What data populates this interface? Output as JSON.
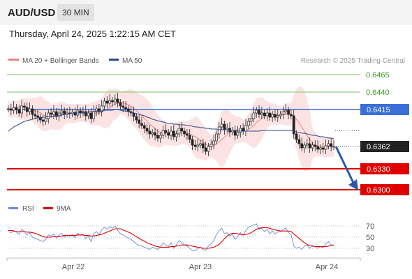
{
  "header": {
    "symbol": "AUD/USD",
    "timeframe": "30 MIN",
    "datetime": "Thursday, April 24, 2025 1:22:15 AM CET"
  },
  "legend": {
    "bb_label": "MA 20 + Bollinger Bands",
    "ma50_label": "MA 50",
    "credit": "Research © 2025 Trading Central",
    "rsi_label": "RSI",
    "rsi_ma_label": "9MA"
  },
  "colors": {
    "bollinger": "#f08080",
    "ma50": "#2a4a8a",
    "support": "#e00000",
    "pivot": "#3a6fd8",
    "resistance": "#7bc26a",
    "current": "#222222",
    "rsi": "#6a8ad8",
    "rsi_ma": "#e00000",
    "arrow": "#2a5aa8"
  },
  "chart_data": [
    {
      "type": "candlestick",
      "title": "AUD/USD 30 MIN",
      "x_labels": [
        "Apr 22",
        "Apr 23",
        "Apr 24"
      ],
      "ylim": [
        0.6292,
        0.6472
      ],
      "levels": [
        {
          "value": 0.6465,
          "label": "0.6465",
          "kind": "resistance"
        },
        {
          "value": 0.644,
          "label": "0.6440",
          "kind": "resistance"
        },
        {
          "value": 0.6415,
          "label": "0.6415",
          "kind": "pivot"
        },
        {
          "value": 0.6362,
          "label": "0.6362",
          "kind": "current"
        },
        {
          "value": 0.633,
          "label": "0.6330",
          "kind": "support"
        },
        {
          "value": 0.63,
          "label": "0.6300",
          "kind": "support"
        }
      ],
      "close": [
        0.6416,
        0.6414,
        0.6418,
        0.6415,
        0.641,
        0.642,
        0.6418,
        0.6412,
        0.6416,
        0.6408,
        0.6406,
        0.6404,
        0.64,
        0.6398,
        0.6402,
        0.641,
        0.6408,
        0.6412,
        0.6405,
        0.641,
        0.6413,
        0.6408,
        0.641,
        0.6409,
        0.6411,
        0.6407,
        0.6413,
        0.641,
        0.6412,
        0.6406,
        0.641,
        0.6402,
        0.6412,
        0.6416,
        0.6412,
        0.642,
        0.6427,
        0.6424,
        0.6428,
        0.6426,
        0.643,
        0.6425,
        0.642,
        0.6418,
        0.6416,
        0.6412,
        0.641,
        0.6405,
        0.64,
        0.6395,
        0.6392,
        0.6388,
        0.6384,
        0.638,
        0.6382,
        0.6378,
        0.6374,
        0.6378,
        0.6385,
        0.6382,
        0.6378,
        0.6384,
        0.6376,
        0.638,
        0.6388,
        0.6384,
        0.638,
        0.6378,
        0.6372,
        0.6364,
        0.6362,
        0.6364,
        0.6366,
        0.636,
        0.6355,
        0.6362,
        0.6365,
        0.637,
        0.638,
        0.639,
        0.6394,
        0.6386,
        0.6388,
        0.6383,
        0.6385,
        0.6378,
        0.6382,
        0.6388,
        0.6384,
        0.6392,
        0.6398,
        0.6402,
        0.641,
        0.6414,
        0.6408,
        0.641,
        0.6406,
        0.641,
        0.6404,
        0.6408,
        0.6404,
        0.6406,
        0.6408,
        0.6412,
        0.6414,
        0.6408,
        0.6406,
        0.638,
        0.6372,
        0.6366,
        0.636,
        0.6364,
        0.6366,
        0.636,
        0.6364,
        0.6362,
        0.6358,
        0.636,
        0.6358,
        0.6363,
        0.6366,
        0.6362,
        0.6362
      ],
      "ma50": [
        0.6384,
        0.6387,
        0.639,
        0.6392,
        0.6394,
        0.6396,
        0.6398,
        0.6399,
        0.64,
        0.6401,
        0.6402,
        0.6403,
        0.6403,
        0.6404,
        0.6404,
        0.6405,
        0.6405,
        0.6406,
        0.6406,
        0.6407,
        0.6407,
        0.6408,
        0.6408,
        0.6409,
        0.6409,
        0.641,
        0.641,
        0.6411,
        0.6411,
        0.6411,
        0.6412,
        0.6412,
        0.6412,
        0.6413,
        0.6413,
        0.6413,
        0.6414,
        0.6414,
        0.6414,
        0.6414,
        0.6415,
        0.6415,
        0.6414,
        0.6413,
        0.6413,
        0.6412,
        0.6411,
        0.641,
        0.6409,
        0.6408,
        0.6407,
        0.6406,
        0.6404,
        0.6403,
        0.6401,
        0.64,
        0.6399,
        0.6398,
        0.6397,
        0.6396,
        0.6395,
        0.6395,
        0.6394,
        0.6394,
        0.6393,
        0.6393,
        0.6393,
        0.6392,
        0.6392,
        0.6391,
        0.639,
        0.639,
        0.6389,
        0.6389,
        0.6388,
        0.6388,
        0.6387,
        0.6387,
        0.6387,
        0.6386,
        0.6386,
        0.6386,
        0.6386,
        0.6385,
        0.6385,
        0.6385,
        0.6384,
        0.6384,
        0.6384,
        0.6384,
        0.6384,
        0.6384,
        0.6384,
        0.6384,
        0.6384,
        0.6385,
        0.6385,
        0.6385,
        0.6385,
        0.6385,
        0.6385,
        0.6385,
        0.6385,
        0.6385,
        0.6385,
        0.6385,
        0.6385,
        0.6384,
        0.6383,
        0.6382,
        0.6381,
        0.6381,
        0.638,
        0.6379,
        0.6378,
        0.6378,
        0.6377,
        0.6376,
        0.6376,
        0.6375,
        0.6374,
        0.6374,
        0.6373
      ]
    },
    {
      "type": "line",
      "title": "RSI",
      "yticks": [
        70,
        50,
        30
      ],
      "ylim": [
        20,
        80
      ],
      "series": [
        {
          "name": "RSI",
          "values": [
            60,
            58,
            62,
            59,
            55,
            64,
            60,
            54,
            58,
            50,
            48,
            46,
            44,
            42,
            46,
            54,
            52,
            56,
            48,
            54,
            57,
            50,
            53,
            52,
            55,
            49,
            57,
            53,
            56,
            47,
            53,
            42,
            56,
            60,
            55,
            63,
            68,
            64,
            69,
            66,
            70,
            62,
            56,
            54,
            51,
            48,
            46,
            42,
            38,
            35,
            34,
            32,
            30,
            28,
            32,
            30,
            28,
            32,
            40,
            36,
            33,
            40,
            30,
            36,
            44,
            40,
            36,
            34,
            30,
            26,
            26,
            30,
            32,
            28,
            26,
            34,
            38,
            44,
            54,
            62,
            66,
            56,
            58,
            52,
            55,
            46,
            51,
            58,
            53,
            62,
            68,
            70,
            72,
            74,
            64,
            66,
            60,
            64,
            56,
            61,
            56,
            59,
            60,
            64,
            66,
            58,
            55,
            34,
            30,
            32,
            28,
            34,
            36,
            30,
            35,
            33,
            30,
            33,
            31,
            38,
            42,
            36,
            36
          ]
        },
        {
          "name": "9MA",
          "values": [
            62,
            62,
            61,
            60,
            60,
            60,
            60,
            59,
            59,
            58,
            57,
            55,
            53,
            51,
            50,
            50,
            50,
            51,
            51,
            51,
            52,
            53,
            53,
            53,
            53,
            53,
            54,
            54,
            54,
            53,
            53,
            52,
            52,
            53,
            54,
            55,
            57,
            59,
            61,
            63,
            65,
            65,
            65,
            63,
            61,
            59,
            57,
            54,
            51,
            48,
            45,
            43,
            40,
            38,
            36,
            34,
            33,
            32,
            32,
            32,
            32,
            33,
            33,
            34,
            35,
            36,
            36,
            36,
            35,
            34,
            33,
            32,
            31,
            30,
            30,
            30,
            31,
            32,
            34,
            37,
            42,
            47,
            52,
            55,
            57,
            57,
            56,
            55,
            54,
            55,
            56,
            58,
            61,
            64,
            66,
            67,
            67,
            67,
            66,
            64,
            63,
            62,
            61,
            61,
            61,
            61,
            60,
            56,
            52,
            48,
            44,
            40,
            37,
            35,
            34,
            33,
            33,
            33,
            33,
            33,
            34,
            35,
            36
          ]
        }
      ]
    }
  ]
}
